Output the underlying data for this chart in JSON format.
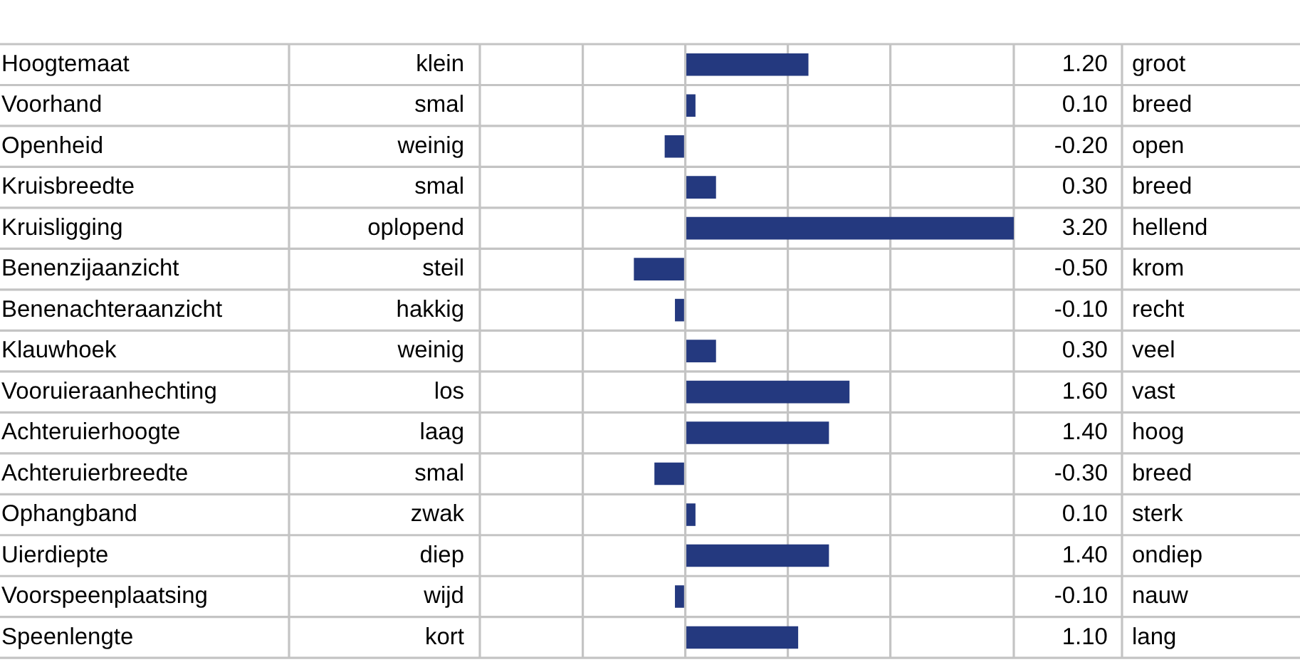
{
  "chart_data": {
    "type": "bar",
    "orientation": "horizontal",
    "categories": [
      "Hoogtemaat",
      "Voorhand",
      "Openheid",
      "Kruisbreedte",
      "Kruisligging",
      "Benenzijaanzicht",
      "Benenachteraanzicht",
      "Klauwhoek",
      "Vooruieraanhechting",
      "Achteruierhoogte",
      "Achteruierbreedte",
      "Ophangband",
      "Uierdiepte",
      "Voorspeenplaatsing",
      "Speenlengte"
    ],
    "values": [
      1.2,
      0.1,
      -0.2,
      0.3,
      3.2,
      -0.5,
      -0.1,
      0.3,
      1.6,
      1.4,
      -0.3,
      0.1,
      1.4,
      -0.1,
      1.1
    ],
    "value_labels": [
      "1.20",
      "0.10",
      "-0.20",
      "0.30",
      "3.20",
      "-0.50",
      "-0.10",
      "0.30",
      "1.60",
      "1.40",
      "-0.30",
      "0.10",
      "1.40",
      "-0.10",
      "1.10"
    ],
    "color": "#24397f",
    "xlim": [
      -2,
      3.2
    ],
    "xticks": [
      {
        "value": -1,
        "label": null
      },
      {
        "value": 0,
        "label": null
      },
      {
        "value": 1,
        "label": null
      },
      {
        "value": 2,
        "label": null
      }
    ],
    "tick_labels": "y",
    "grid": true,
    "annotations": [
      "klein",
      "smal",
      "weinig",
      "smal",
      "oplopend",
      "steil",
      "hakkig",
      "weinig",
      "los",
      "laag",
      "smal",
      "zwak",
      "diep",
      "wijd",
      "kort",
      "groot",
      "breed",
      "open",
      "breed",
      "hellend",
      "krom",
      "recht",
      "veel",
      "vast",
      "hoog",
      "breed",
      "sterk",
      "ondiep",
      "nauw",
      "lang"
    ]
  }
}
